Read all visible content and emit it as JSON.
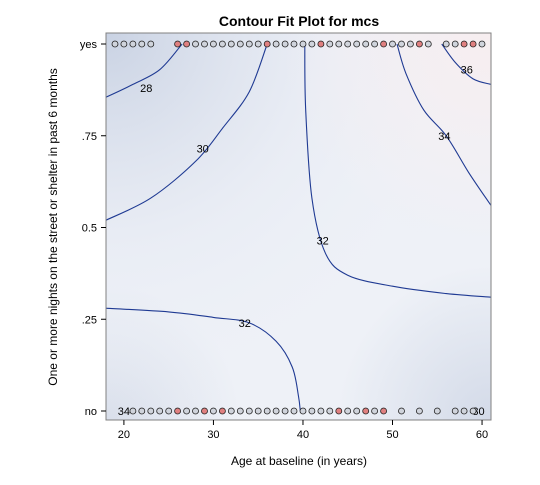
{
  "chart_data": {
    "type": "contour",
    "title": "Contour Fit Plot for mcs",
    "xlabel": "Age at baseline (in years)",
    "ylabel": "One or more nights on the street or shelter in past 6 months",
    "xlim": [
      18,
      61
    ],
    "ylim": [
      0,
      1
    ],
    "x_ticks": [
      {
        "value": 20,
        "label": "20"
      },
      {
        "value": 30,
        "label": "30"
      },
      {
        "value": 40,
        "label": "40"
      },
      {
        "value": 50,
        "label": "50"
      },
      {
        "value": 60,
        "label": "60"
      }
    ],
    "y_ticks": [
      {
        "value": 0,
        "label": "no"
      },
      {
        "value": 0.25,
        "label": ".25"
      },
      {
        "value": 0.5,
        "label": "0.5"
      },
      {
        "value": 0.75,
        "label": ".75"
      },
      {
        "value": 1,
        "label": "yes"
      }
    ],
    "contours": [
      {
        "level": "28",
        "label_at": [
          22.5,
          0.88
        ],
        "points": [
          [
            18,
            0.855
          ],
          [
            21,
            0.89
          ],
          [
            24,
            0.93
          ],
          [
            26.5,
            1.0
          ]
        ]
      },
      {
        "level": "30",
        "label_at": [
          28.8,
          0.715
        ],
        "points": [
          [
            18,
            0.52
          ],
          [
            23,
            0.58
          ],
          [
            28,
            0.68
          ],
          [
            31,
            0.77
          ],
          [
            34,
            0.87
          ],
          [
            36,
            1.0
          ]
        ]
      },
      {
        "level": "32",
        "label_at": [
          42.2,
          0.465
        ],
        "points": [
          [
            40.2,
            1.0
          ],
          [
            40.3,
            0.82
          ],
          [
            41,
            0.58
          ],
          [
            42.5,
            0.43
          ],
          [
            45,
            0.37
          ],
          [
            50,
            0.34
          ],
          [
            56,
            0.32
          ],
          [
            61,
            0.31
          ]
        ]
      },
      {
        "level": "32",
        "label_at": [
          33.5,
          0.24
        ],
        "points": [
          [
            18,
            0.28
          ],
          [
            25,
            0.27
          ],
          [
            30,
            0.255
          ],
          [
            34,
            0.24
          ],
          [
            37,
            0.19
          ],
          [
            38.8,
            0.12
          ],
          [
            39.5,
            0.04
          ],
          [
            39.7,
            0.0
          ]
        ]
      },
      {
        "level": "34",
        "label_at": [
          55.8,
          0.75
        ],
        "points": [
          [
            50.5,
            1.0
          ],
          [
            51.5,
            0.92
          ],
          [
            53.5,
            0.82
          ],
          [
            56,
            0.75
          ],
          [
            58.5,
            0.65
          ],
          [
            61,
            0.56
          ]
        ]
      },
      {
        "level": "36",
        "label_at": [
          58.3,
          0.93
        ],
        "points": [
          [
            55.5,
            1.0
          ],
          [
            57,
            0.95
          ],
          [
            59,
            0.905
          ],
          [
            61,
            0.89
          ]
        ]
      },
      {
        "level": "34",
        "label_at": [
          20,
          0.0
        ],
        "points": []
      },
      {
        "level": "30",
        "label_at": [
          59.6,
          0.0
        ],
        "points": []
      }
    ],
    "points_yes": [
      {
        "x": 19.0,
        "red": false
      },
      {
        "x": 20.0,
        "red": false
      },
      {
        "x": 21.0,
        "red": false
      },
      {
        "x": 22.0,
        "red": false
      },
      {
        "x": 23.0,
        "red": false
      },
      {
        "x": 26.0,
        "red": true
      },
      {
        "x": 27.0,
        "red": true
      },
      {
        "x": 28.0,
        "red": false
      },
      {
        "x": 29.0,
        "red": false
      },
      {
        "x": 30.0,
        "red": false
      },
      {
        "x": 31.0,
        "red": false
      },
      {
        "x": 32.0,
        "red": false
      },
      {
        "x": 33.0,
        "red": false
      },
      {
        "x": 34.0,
        "red": false
      },
      {
        "x": 35.0,
        "red": false
      },
      {
        "x": 36.0,
        "red": true
      },
      {
        "x": 37.0,
        "red": false
      },
      {
        "x": 38.0,
        "red": false
      },
      {
        "x": 39.0,
        "red": false
      },
      {
        "x": 40.0,
        "red": false
      },
      {
        "x": 41.0,
        "red": false
      },
      {
        "x": 42.0,
        "red": true
      },
      {
        "x": 43.0,
        "red": false
      },
      {
        "x": 44.0,
        "red": false
      },
      {
        "x": 45.0,
        "red": false
      },
      {
        "x": 46.0,
        "red": false
      },
      {
        "x": 47.0,
        "red": false
      },
      {
        "x": 48.0,
        "red": false
      },
      {
        "x": 49.0,
        "red": true
      },
      {
        "x": 50.0,
        "red": false
      },
      {
        "x": 51.0,
        "red": false
      },
      {
        "x": 52.0,
        "red": false
      },
      {
        "x": 53.0,
        "red": true
      },
      {
        "x": 54.0,
        "red": false
      },
      {
        "x": 56.0,
        "red": false
      },
      {
        "x": 57.0,
        "red": false
      },
      {
        "x": 58.0,
        "red": true
      },
      {
        "x": 59.0,
        "red": true
      },
      {
        "x": 60.0,
        "red": false
      }
    ],
    "points_no": [
      {
        "x": 21.0,
        "red": false
      },
      {
        "x": 22.0,
        "red": false
      },
      {
        "x": 23.0,
        "red": false
      },
      {
        "x": 24.0,
        "red": false
      },
      {
        "x": 25.0,
        "red": false
      },
      {
        "x": 26.0,
        "red": true
      },
      {
        "x": 27.0,
        "red": false
      },
      {
        "x": 28.0,
        "red": false
      },
      {
        "x": 29.0,
        "red": true
      },
      {
        "x": 30.0,
        "red": false
      },
      {
        "x": 31.0,
        "red": true
      },
      {
        "x": 32.0,
        "red": false
      },
      {
        "x": 33.0,
        "red": false
      },
      {
        "x": 34.0,
        "red": false
      },
      {
        "x": 35.0,
        "red": false
      },
      {
        "x": 36.0,
        "red": false
      },
      {
        "x": 37.0,
        "red": false
      },
      {
        "x": 38.0,
        "red": false
      },
      {
        "x": 39.0,
        "red": false
      },
      {
        "x": 40.0,
        "red": false
      },
      {
        "x": 41.0,
        "red": false
      },
      {
        "x": 42.0,
        "red": false
      },
      {
        "x": 43.0,
        "red": false
      },
      {
        "x": 44.0,
        "red": true
      },
      {
        "x": 45.0,
        "red": false
      },
      {
        "x": 46.0,
        "red": false
      },
      {
        "x": 47.0,
        "red": true
      },
      {
        "x": 48.0,
        "red": false
      },
      {
        "x": 49.0,
        "red": true
      },
      {
        "x": 51.0,
        "red": false
      },
      {
        "x": 53.0,
        "red": false
      },
      {
        "x": 55.0,
        "red": false
      },
      {
        "x": 57.0,
        "red": false
      },
      {
        "x": 58.0,
        "red": false
      },
      {
        "x": 59.0,
        "red": false
      }
    ],
    "colors": {
      "contour_line": "#1f3a93",
      "marker_fill": "#d0d4dc",
      "marker_red": "#e08080",
      "marker_stroke": "#222222",
      "fill_low": "#c9d2e3",
      "fill_mid": "#eef1f7",
      "fill_high": "#f7eef0"
    },
    "grid": false,
    "legend": "none"
  }
}
